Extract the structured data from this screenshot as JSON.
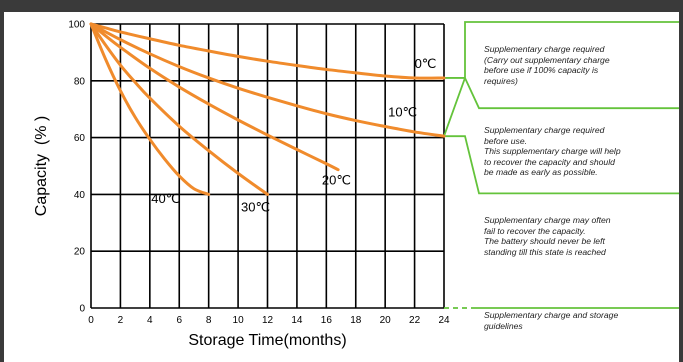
{
  "chart_data": {
    "type": "line",
    "title": "",
    "xlabel": "Storage Time(months)",
    "ylabel": "Capacity  (% )",
    "xlim": [
      0,
      24
    ],
    "ylim": [
      0,
      100
    ],
    "x_ticks": [
      0,
      2,
      4,
      6,
      8,
      10,
      12,
      14,
      16,
      18,
      20,
      22,
      24
    ],
    "y_ticks": [
      0,
      20,
      40,
      60,
      80,
      100
    ],
    "grid": true,
    "series": [
      {
        "name": "0℃",
        "x": [
          0,
          1,
          2,
          4,
          6,
          8,
          10,
          12,
          14,
          16,
          18,
          20,
          22,
          24
        ],
        "y": [
          100,
          98.6,
          97.2,
          94.8,
          92.5,
          90.5,
          88.6,
          86.9,
          85.4,
          84.0,
          82.8,
          81.7,
          81.0,
          81.0
        ]
      },
      {
        "name": "10℃",
        "x": [
          0,
          2,
          4,
          6,
          8,
          10,
          12,
          14,
          16,
          18,
          20,
          22,
          24
        ],
        "y": [
          100,
          94.5,
          89.5,
          85.0,
          81.0,
          77.4,
          74.2,
          71.2,
          68.4,
          66.0,
          63.9,
          62.0,
          60.5
        ]
      },
      {
        "name": "20℃",
        "x": [
          0,
          1,
          2,
          4,
          6,
          8,
          10,
          12,
          14,
          16,
          16.8
        ],
        "y": [
          100,
          95.8,
          91.8,
          84.4,
          77.8,
          71.8,
          66.2,
          60.9,
          55.8,
          50.8,
          48.7
        ]
      },
      {
        "name": "30℃",
        "x": [
          0,
          1,
          2,
          3,
          4,
          6,
          8,
          10,
          12
        ],
        "y": [
          100,
          92.5,
          85.5,
          79.5,
          73.9,
          64.0,
          55.4,
          47.4,
          40.0
        ]
      },
      {
        "name": "40℃",
        "x": [
          0,
          1,
          2,
          3,
          4,
          5,
          6,
          7,
          8
        ],
        "y": [
          100,
          87.5,
          76.5,
          67.2,
          59.4,
          52.5,
          46.5,
          42.0,
          40.0
        ]
      }
    ],
    "curve_labels": [
      {
        "text": "0℃",
        "x": 22.0,
        "y": 84.5
      },
      {
        "text": "10℃",
        "x": 20.2,
        "y": 67.5
      },
      {
        "text": "20℃",
        "x": 15.7,
        "y": 43.5
      },
      {
        "text": "30℃",
        "x": 10.2,
        "y": 34.0
      },
      {
        "text": "40℃",
        "x": 4.1,
        "y": 37.0
      }
    ]
  },
  "guidelines": {
    "notes": [
      {
        "lines": [
          "Supplementary charge required",
          "(Carry out supplementary charge",
          "before use if 100% capacity is",
          "requires)"
        ]
      },
      {
        "lines": [
          "Supplementary charge required",
          "before use.",
          "This supplementary charge will help",
          "to recover the capacity and should",
          "be made  as early as possible."
        ]
      },
      {
        "lines": [
          "Supplementary charge may often",
          "fail to recover the capacity.",
          "The battery should never be left",
          "standing till this state is reached"
        ]
      },
      {
        "lines": [
          "Supplementary charge and storage",
          "guidelines"
        ]
      }
    ],
    "colors": {
      "curve": "#f08b2c",
      "zone": "#64c33b",
      "grid": "#000000"
    }
  }
}
